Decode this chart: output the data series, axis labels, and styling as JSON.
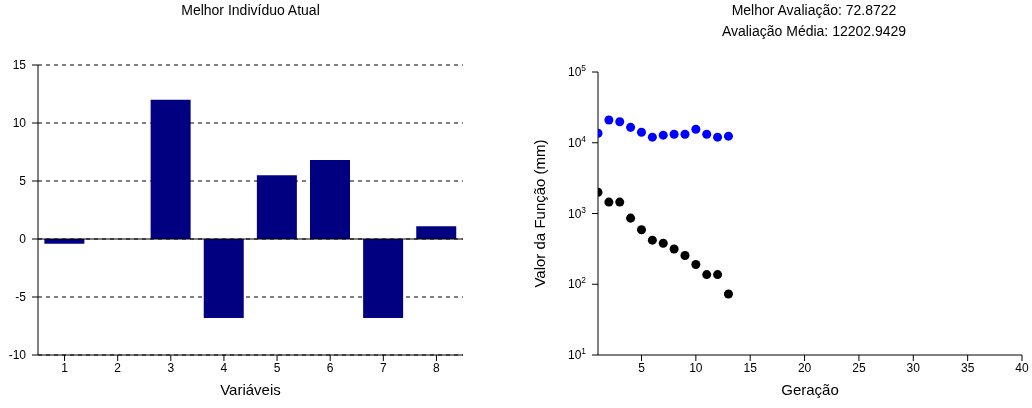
{
  "chart_data": [
    {
      "type": "bar",
      "title": "Melhor Indivíduo Atual",
      "xlabel": "Variáveis",
      "categories": [
        "1",
        "2",
        "3",
        "4",
        "5",
        "6",
        "7",
        "8"
      ],
      "values": [
        -0.4,
        0,
        12,
        -6.8,
        5.5,
        6.8,
        -6.8,
        1.1
      ],
      "color": "#000080",
      "ylim": [
        -10,
        15
      ],
      "yticks": [
        -10,
        -5,
        0,
        5,
        10,
        15
      ],
      "grid": "y",
      "line_style": "dashed",
      "ref_lines": [
        {
          "axis": "y",
          "value": 0,
          "color": "#000000"
        }
      ]
    },
    {
      "type": "scatter",
      "title": "Melhor Avaliação: 72.8722",
      "subtitle": "Avaliação Média: 12202.9429",
      "xlabel": "Geração",
      "ylabel": "Valor da Função (mm)",
      "x": [
        1,
        2,
        3,
        4,
        5,
        6,
        7,
        8,
        9,
        10,
        11,
        12,
        13
      ],
      "series": [
        {
          "color": "#0000ff",
          "values": [
            13600,
            21000,
            19800,
            16500,
            14100,
            12000,
            12800,
            13200,
            13200,
            15500,
            13200,
            12000,
            12400
          ]
        },
        {
          "color": "#000000",
          "values": [
            2000,
            1450,
            1450,
            860,
            590,
            420,
            380,
            315,
            255,
            190,
            137,
            137,
            72.8722
          ]
        }
      ],
      "log": "y",
      "marker": "circle",
      "xlim": [
        1,
        40
      ],
      "xticks": [
        5,
        10,
        15,
        20,
        25,
        30,
        35,
        40
      ],
      "ylim": [
        10,
        100000
      ],
      "yticks": [
        {
          "value": 10,
          "label": "10$^{1}$"
        },
        {
          "value": 100,
          "label": "10$^{2}$"
        },
        {
          "value": 1000,
          "label": "10$^{3}$"
        },
        {
          "value": 10000,
          "label": "10$^{4}$"
        },
        {
          "value": 100000,
          "label": "10$^{5}$"
        }
      ]
    }
  ]
}
